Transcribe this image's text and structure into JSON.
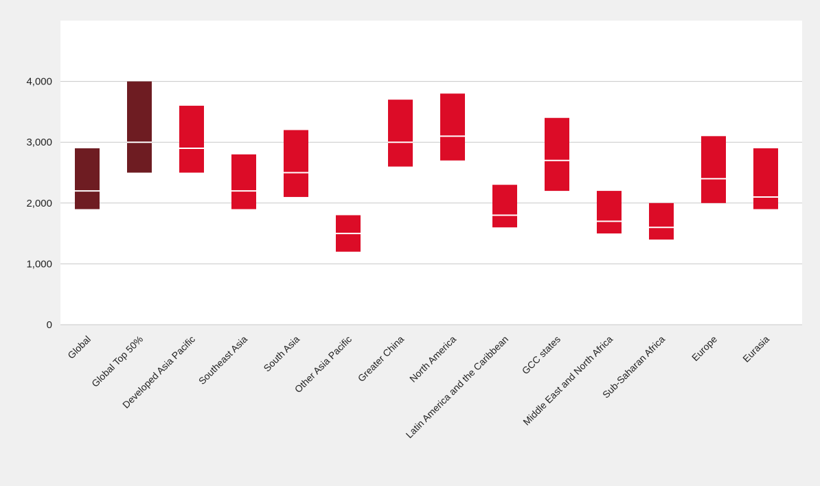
{
  "chart_data": {
    "type": "range-bar",
    "title": "",
    "xlabel": "",
    "ylabel": "",
    "ylim": [
      0,
      5000
    ],
    "yticks": [
      0,
      1000,
      2000,
      3000,
      4000
    ],
    "ytick_labels": [
      "0",
      "1,000",
      "2,000",
      "3,000",
      "4,000"
    ],
    "grid": true,
    "colors": {
      "highlight": "#6e1c22",
      "default": "#dc0c27",
      "median": "#ffffff",
      "grid": "#c8c8c8",
      "plot_bg": "#ffffff",
      "page_bg": "#f0f0f0"
    },
    "categories": [
      "Global",
      "Global Top 50%",
      "Developed Asia Pacific",
      "Southeast Asia",
      "South Asia",
      "Other Asia Pacific",
      "Greater China",
      "North America",
      "Latin America and the Caribbean",
      "GCC states",
      "Middle East and North Africa",
      "Sub-Saharan Africa",
      "Europe",
      "Eurasia"
    ],
    "low": [
      1900,
      2500,
      2500,
      1900,
      2100,
      1200,
      2600,
      2700,
      1600,
      2200,
      1500,
      1400,
      2000,
      1900
    ],
    "high": [
      2900,
      4000,
      3600,
      2800,
      3200,
      1800,
      3700,
      3800,
      2300,
      3400,
      2200,
      2000,
      3100,
      2900
    ],
    "median": [
      2200,
      3000,
      2900,
      2200,
      2500,
      1500,
      3000,
      3100,
      1800,
      2700,
      1700,
      1600,
      2400,
      2100
    ],
    "highlighted": [
      true,
      true,
      false,
      false,
      false,
      false,
      false,
      false,
      false,
      false,
      false,
      false,
      false,
      false
    ]
  }
}
